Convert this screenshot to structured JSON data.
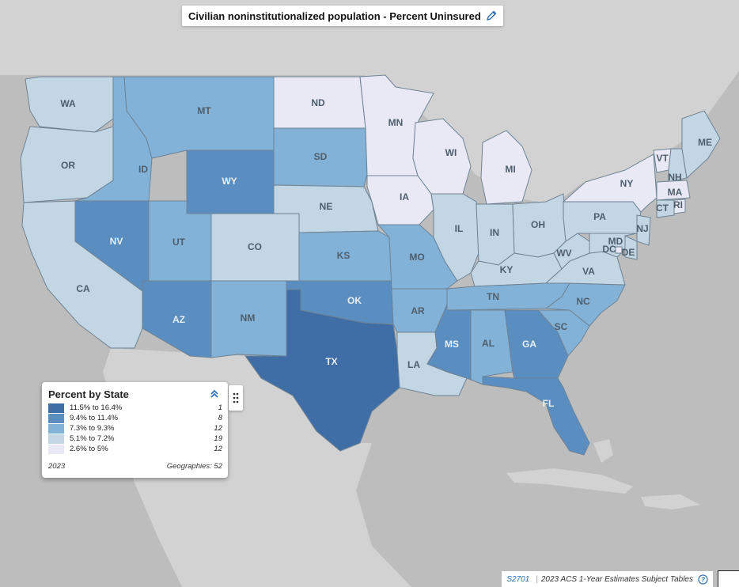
{
  "title": "Civilian noninstitutionalized population - Percent Uninsured",
  "legend": {
    "title": "Percent by State",
    "classes": [
      {
        "range": "11.5% to 16.4%",
        "count": "1",
        "color": "#3f6ea6"
      },
      {
        "range": "9.4% to 11.4%",
        "count": "8",
        "color": "#5a8ec1"
      },
      {
        "range": "7.3% to 9.3%",
        "count": "12",
        "color": "#82b2d8"
      },
      {
        "range": "5.1% to 7.2%",
        "count": "19",
        "color": "#c3d6e4"
      },
      {
        "range": "2.6% to 5%",
        "count": "12",
        "color": "#e8e9f5"
      }
    ],
    "year": "2023",
    "geographies": "Geographies: 52"
  },
  "footer": {
    "table_id": "S2701",
    "source": "2023 ACS 1-Year Estimates Subject Tables"
  },
  "colors": {
    "land": "#d2d2d2",
    "water": "#bdbdbd",
    "border": "#6f8394"
  },
  "states": [
    {
      "abbr": "WA",
      "cls": 3
    },
    {
      "abbr": "OR",
      "cls": 3
    },
    {
      "abbr": "CA",
      "cls": 3
    },
    {
      "abbr": "ID",
      "cls": 2
    },
    {
      "abbr": "NV",
      "cls": 1
    },
    {
      "abbr": "MT",
      "cls": 2
    },
    {
      "abbr": "WY",
      "cls": 1
    },
    {
      "abbr": "UT",
      "cls": 2
    },
    {
      "abbr": "AZ",
      "cls": 1
    },
    {
      "abbr": "CO",
      "cls": 3
    },
    {
      "abbr": "NM",
      "cls": 2
    },
    {
      "abbr": "ND",
      "cls": 4
    },
    {
      "abbr": "SD",
      "cls": 2
    },
    {
      "abbr": "NE",
      "cls": 3
    },
    {
      "abbr": "KS",
      "cls": 2
    },
    {
      "abbr": "OK",
      "cls": 1
    },
    {
      "abbr": "TX",
      "cls": 0
    },
    {
      "abbr": "MN",
      "cls": 4
    },
    {
      "abbr": "IA",
      "cls": 4
    },
    {
      "abbr": "MO",
      "cls": 2
    },
    {
      "abbr": "AR",
      "cls": 2
    },
    {
      "abbr": "LA",
      "cls": 3
    },
    {
      "abbr": "WI",
      "cls": 4
    },
    {
      "abbr": "IL",
      "cls": 3
    },
    {
      "abbr": "MI",
      "cls": 4
    },
    {
      "abbr": "IN",
      "cls": 3
    },
    {
      "abbr": "OH",
      "cls": 3
    },
    {
      "abbr": "KY",
      "cls": 3
    },
    {
      "abbr": "TN",
      "cls": 2
    },
    {
      "abbr": "MS",
      "cls": 1
    },
    {
      "abbr": "AL",
      "cls": 2
    },
    {
      "abbr": "GA",
      "cls": 1
    },
    {
      "abbr": "FL",
      "cls": 1
    },
    {
      "abbr": "SC",
      "cls": 2
    },
    {
      "abbr": "NC",
      "cls": 2
    },
    {
      "abbr": "VA",
      "cls": 3
    },
    {
      "abbr": "WV",
      "cls": 3
    },
    {
      "abbr": "PA",
      "cls": 3
    },
    {
      "abbr": "NY",
      "cls": 4
    },
    {
      "abbr": "VT",
      "cls": 4
    },
    {
      "abbr": "NH",
      "cls": 3
    },
    {
      "abbr": "ME",
      "cls": 3
    },
    {
      "abbr": "MA",
      "cls": 4
    },
    {
      "abbr": "RI",
      "cls": 4
    },
    {
      "abbr": "CT",
      "cls": 3
    },
    {
      "abbr": "NJ",
      "cls": 3
    },
    {
      "abbr": "DE",
      "cls": 3
    },
    {
      "abbr": "MD",
      "cls": 3
    },
    {
      "abbr": "DC",
      "cls": 4
    }
  ]
}
